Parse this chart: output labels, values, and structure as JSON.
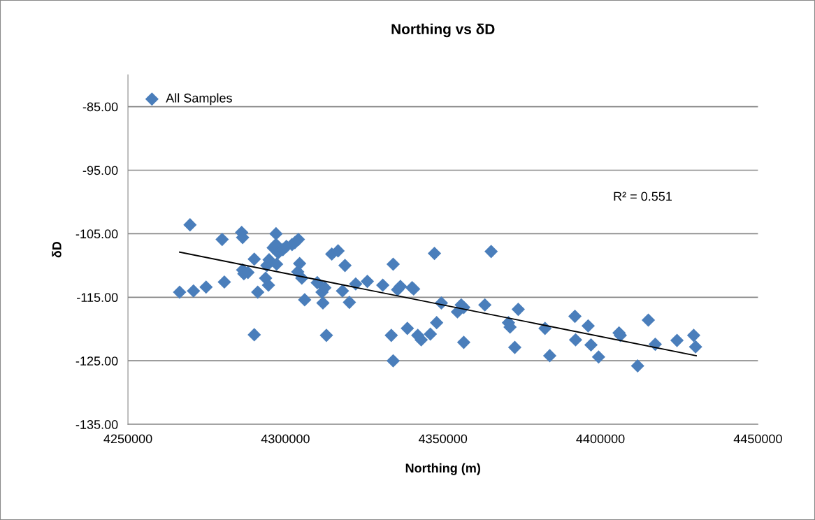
{
  "chart_data": {
    "type": "scatter",
    "title": "Northing vs δD",
    "xlabel": "Northing (m)",
    "ylabel": "δD",
    "xlim": [
      4250000,
      4450000
    ],
    "xticks": [
      4250000,
      4300000,
      4350000,
      4400000,
      4450000
    ],
    "ylim": [
      -135,
      -80
    ],
    "yticks": [
      {
        "value": -85,
        "label": "-85.00"
      },
      {
        "value": -95,
        "label": "-95.00"
      },
      {
        "value": -105,
        "label": "-105.00"
      },
      {
        "value": -115,
        "label": "-115.00"
      },
      {
        "value": -125,
        "label": "-125.00"
      },
      {
        "value": -135,
        "label": "-135.00"
      }
    ],
    "grid": "y",
    "legend": "top left",
    "marker": "diamond",
    "annotations": [
      "R² = 0.551"
    ],
    "series": [
      {
        "name": "All Samples",
        "color": "#4a7ebb",
        "x": [
          4266400,
          4269700,
          4270800,
          4274800,
          4279900,
          4280600,
          4286100,
          4286400,
          4286400,
          4286800,
          4288100,
          4290100,
          4290100,
          4291200,
          4293700,
          4294100,
          4294600,
          4294800,
          4296100,
          4297000,
          4297000,
          4297200,
          4297700,
          4299200,
          4300300,
          4302100,
          4303000,
          4304100,
          4303900,
          4304500,
          4305200,
          4306100,
          4310100,
          4311600,
          4311900,
          4312500,
          4313000,
          4314700,
          4316700,
          4318100,
          4318900,
          4320300,
          4322300,
          4326000,
          4330900,
          4333600,
          4334200,
          4334200,
          4335600,
          4336500,
          4338700,
          4340200,
          4340700,
          4342000,
          4343100,
          4346000,
          4347300,
          4348000,
          4349500,
          4354600,
          4355800,
          4356600,
          4356600,
          4363300,
          4365300,
          4370800,
          4371300,
          4372800,
          4373900,
          4382400,
          4383900,
          4391900,
          4392100,
          4396100,
          4397000,
          4399400,
          4405900,
          4406300,
          4411800,
          4415200,
          4417400,
          4424300,
          4429600,
          4430200
        ],
        "values": [
          -114.2,
          -103.6,
          -114.0,
          -113.4,
          -105.9,
          -112.6,
          -104.8,
          -105.6,
          -110.7,
          -111.3,
          -111.1,
          -109.0,
          -120.9,
          -114.2,
          -112.0,
          -110.0,
          -113.1,
          -109.1,
          -107.2,
          -105.0,
          -106.7,
          -109.8,
          -108.0,
          -107.5,
          -107.0,
          -106.7,
          -106.4,
          -105.9,
          -111.0,
          -109.7,
          -112.0,
          -115.4,
          -112.7,
          -114.2,
          -115.9,
          -113.5,
          -121.0,
          -108.2,
          -107.7,
          -114.0,
          -110.0,
          -115.8,
          -112.9,
          -112.5,
          -113.1,
          -121.0,
          -109.8,
          -125.0,
          -113.8,
          -113.3,
          -119.9,
          -113.5,
          -113.7,
          -121.0,
          -121.7,
          -120.8,
          -108.1,
          -119.0,
          -115.9,
          -117.3,
          -116.2,
          -116.6,
          -122.1,
          -116.2,
          -107.8,
          -119.0,
          -119.7,
          -122.9,
          -116.9,
          -119.9,
          -124.2,
          -118.0,
          -121.7,
          -119.5,
          -122.5,
          -124.4,
          -120.6,
          -121.0,
          -125.8,
          -118.6,
          -122.4,
          -121.8,
          -121.0,
          -122.8
        ]
      },
      {
        "type": "line",
        "color": "#000000",
        "marker": "none",
        "x": [
          4266400,
          4430400
        ],
        "values": [
          -107.9,
          -124.2
        ]
      }
    ]
  }
}
